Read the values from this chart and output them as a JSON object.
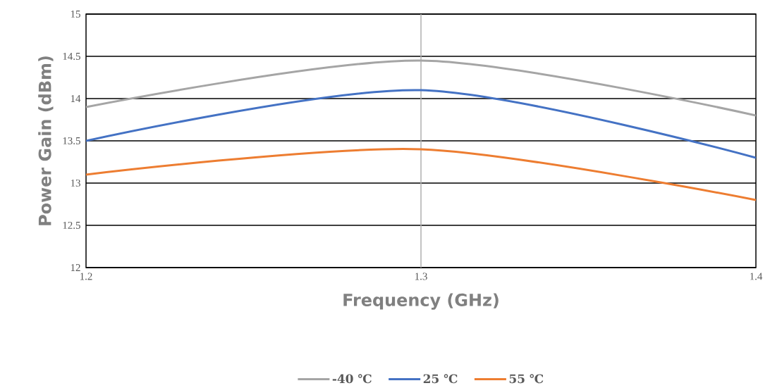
{
  "chart_data": {
    "type": "line",
    "xlabel": "Frequency (GHz)",
    "ylabel": "Power Gain (dBm)",
    "x": [
      1.2,
      1.3,
      1.4
    ],
    "series": [
      {
        "name": "-40 ℃",
        "color": "#a5a5a5",
        "values": [
          13.9,
          14.45,
          13.8
        ]
      },
      {
        "name": "25 ℃",
        "color": "#4472c4",
        "values": [
          13.5,
          14.1,
          13.3
        ]
      },
      {
        "name": "55 ℃",
        "color": "#ed7d31",
        "values": [
          13.1,
          13.4,
          12.8
        ]
      }
    ],
    "xlim": [
      1.2,
      1.4
    ],
    "xticks": [
      1.2,
      1.3,
      1.4
    ],
    "ylim": [
      12,
      15
    ],
    "yticks": [
      12,
      12.5,
      13,
      13.5,
      14,
      14.5,
      15
    ],
    "ref_lines": [
      {
        "axis": "x",
        "value": 1.3,
        "color": "#afafaf"
      }
    ],
    "grid": "y",
    "legend": "bottom",
    "marker": "none",
    "line_style": "solid"
  }
}
